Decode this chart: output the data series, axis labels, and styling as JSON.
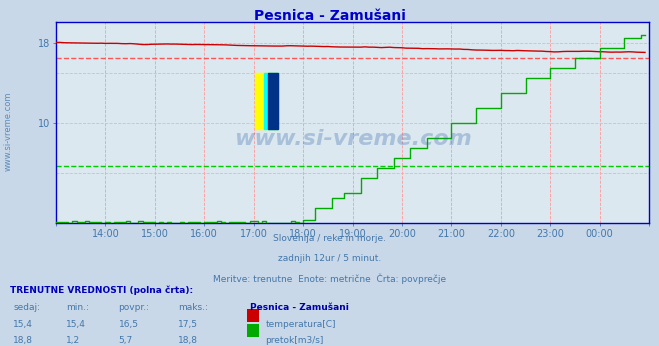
{
  "title": "Pesnica - Zamušani",
  "title_color": "#0000cc",
  "bg_color": "#c8d8e8",
  "plot_bg_color": "#dce8f0",
  "subtitle_lines": [
    "Slovenija / reke in morje.",
    "zadnjih 12ur / 5 minut.",
    "Meritve: trenutne  Enote: metrične  Črta: povprečje"
  ],
  "subtitle_color": "#4477aa",
  "xmin": 0,
  "xmax": 144,
  "ymin": 0,
  "ymax": 20.0,
  "xlabel_times": [
    "",
    "14:00",
    "15:00",
    "16:00",
    "17:00",
    "18:00",
    "19:00",
    "20:00",
    "21:00",
    "22:00",
    "23:00",
    "00:00",
    ""
  ],
  "grid_color_v": "#ff9999",
  "grid_color_h": "#ffaaaa",
  "axis_color": "#0000cc",
  "temp_color": "#cc0000",
  "flow_color": "#00aa00",
  "temp_avg": 16.5,
  "flow_avg": 5.7,
  "temp_avg_color": "#ff5555",
  "flow_avg_color": "#00cc00",
  "watermark_color": "#3366aa",
  "legend_title": "Pesnica - Zamušani",
  "table_header": "TRENUTNE VREDNOSTI (polna črta):",
  "col_headers": [
    "sedaj:",
    "min.:",
    "povpr.:",
    "maks.:"
  ],
  "row1": [
    "15,4",
    "15,4",
    "16,5",
    "17,5"
  ],
  "row2": [
    "18,8",
    "1,2",
    "5,7",
    "18,8"
  ],
  "label1": "temperatura[C]",
  "label2": "pretok[m3/s]",
  "table_color": "#4477aa",
  "table_header_color": "#0000bb",
  "sidebar_text": "www.si-vreme.com",
  "sidebar_color": "#4477aa"
}
